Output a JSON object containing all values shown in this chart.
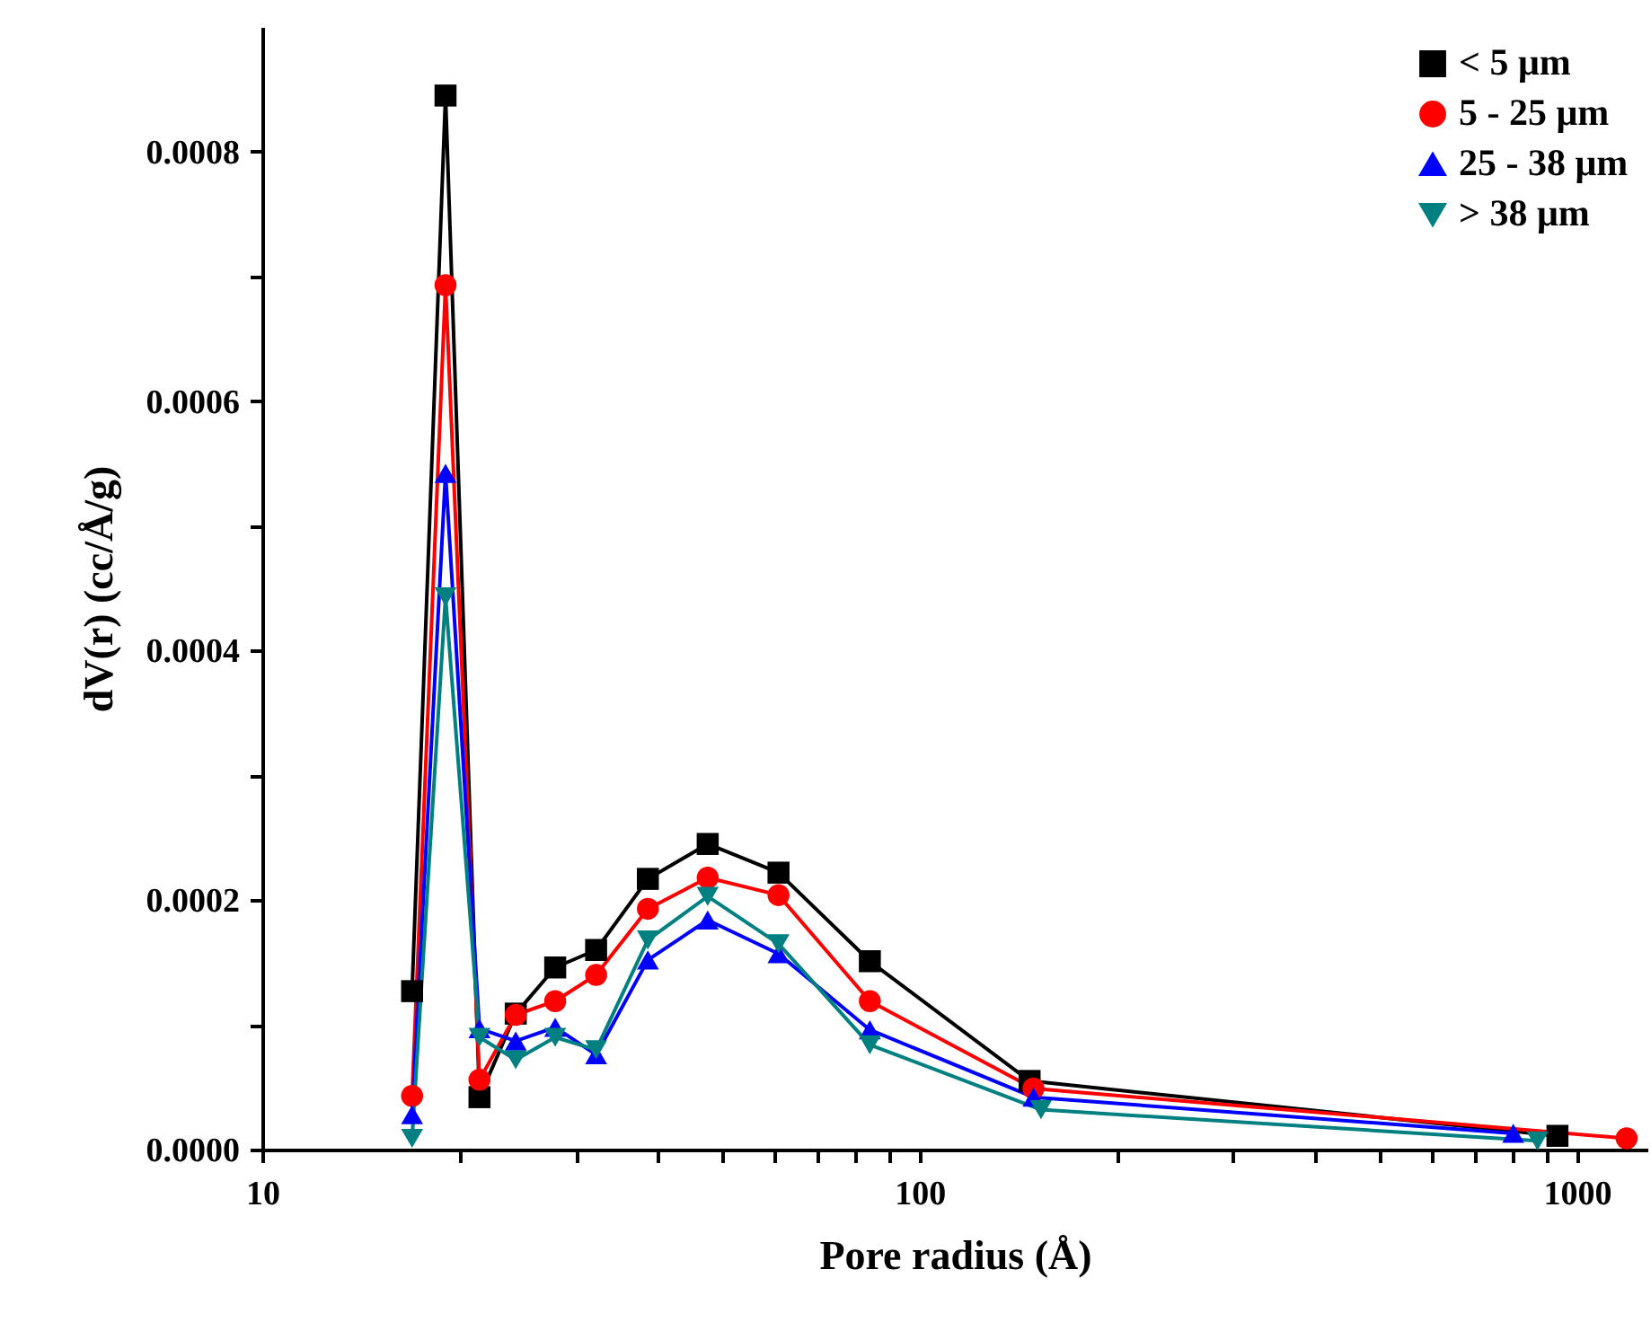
{
  "chart_data": {
    "type": "line",
    "xlabel": "Pore radius (Å)",
    "ylabel": "dV(r) (cc/Å/g)",
    "log": "x",
    "xlim": [
      10,
      1280
    ],
    "xticks": [
      10,
      {
        "value": 20,
        "label": null
      },
      {
        "value": 30,
        "label": null
      },
      {
        "value": 40,
        "label": null
      },
      {
        "value": 50,
        "label": null
      },
      {
        "value": 60,
        "label": null
      },
      {
        "value": 70,
        "label": null
      },
      {
        "value": 80,
        "label": null
      },
      {
        "value": 90,
        "label": null
      },
      100,
      {
        "value": 200,
        "label": null
      },
      {
        "value": 300,
        "label": null
      },
      {
        "value": 400,
        "label": null
      },
      {
        "value": 500,
        "label": null
      },
      {
        "value": 600,
        "label": null
      },
      {
        "value": 700,
        "label": null
      },
      {
        "value": 800,
        "label": null
      },
      {
        "value": 900,
        "label": null
      },
      1000
    ],
    "ylim": [
      0,
      0.0009
    ],
    "yticks": [
      {
        "value": 0,
        "label": "0.0000"
      },
      {
        "value": 0.0001,
        "label": null
      },
      {
        "value": 0.0002,
        "label": "0.0002"
      },
      {
        "value": 0.0003,
        "label": null
      },
      {
        "value": 0.0004,
        "label": "0.0004"
      },
      {
        "value": 0.0005,
        "label": null
      },
      {
        "value": 0.0006,
        "label": "0.0006"
      },
      {
        "value": 0.0007,
        "label": null
      },
      {
        "value": 0.0008,
        "label": "0.0008"
      }
    ],
    "grid": false,
    "legend": "top right",
    "line_style": "solid",
    "series": [
      {
        "name": "< 5 μm",
        "color": "#000000",
        "marker": "square",
        "x": [
          16.9,
          19.0,
          21.4,
          24.3,
          27.9,
          32.2,
          38.6,
          47.6,
          61,
          84,
          147,
          934
        ],
        "values": [
          0.000127,
          0.000845,
          4.2e-05,
          0.000109,
          0.000146,
          0.00016,
          0.000217,
          0.000245,
          0.000222,
          0.000151,
          5.5e-05,
          1.1e-05
        ]
      },
      {
        "name": "5 - 25 μm",
        "color": "#ff0000",
        "marker": "circle",
        "x": [
          16.9,
          19.0,
          21.4,
          24.3,
          27.9,
          32.2,
          38.6,
          47.6,
          61,
          84,
          149,
          1190
        ],
        "values": [
          4.3e-05,
          0.000693,
          5.6e-05,
          0.000108,
          0.000119,
          0.00014,
          0.000193,
          0.000218,
          0.000204,
          0.000119,
          4.9e-05,
          9e-06
        ]
      },
      {
        "name": "25 - 38 μm",
        "color": "#0000ff",
        "marker": "triangle",
        "x": [
          16.9,
          19.0,
          21.4,
          24.3,
          27.9,
          32.2,
          38.6,
          47.6,
          61,
          84,
          149,
          800
        ],
        "values": [
          2.8e-05,
          0.000542,
          9.7e-05,
          8.7e-05,
          9.8e-05,
          7.6e-05,
          0.000152,
          0.000184,
          0.000157,
          9.6e-05,
          4.2e-05,
          1.3e-05
        ]
      },
      {
        "name": "> 38 μm",
        "color": "#008080",
        "marker": "triangle-down",
        "x": [
          16.9,
          19.0,
          21.4,
          24.3,
          27.9,
          32.2,
          38.6,
          47.6,
          61,
          84,
          153,
          871
        ],
        "values": [
          9e-06,
          0.000443,
          9e-05,
          7.2e-05,
          9e-05,
          8e-05,
          0.000168,
          0.000203,
          0.000165,
          8.4e-05,
          3.2e-05,
          7e-06
        ]
      }
    ]
  }
}
